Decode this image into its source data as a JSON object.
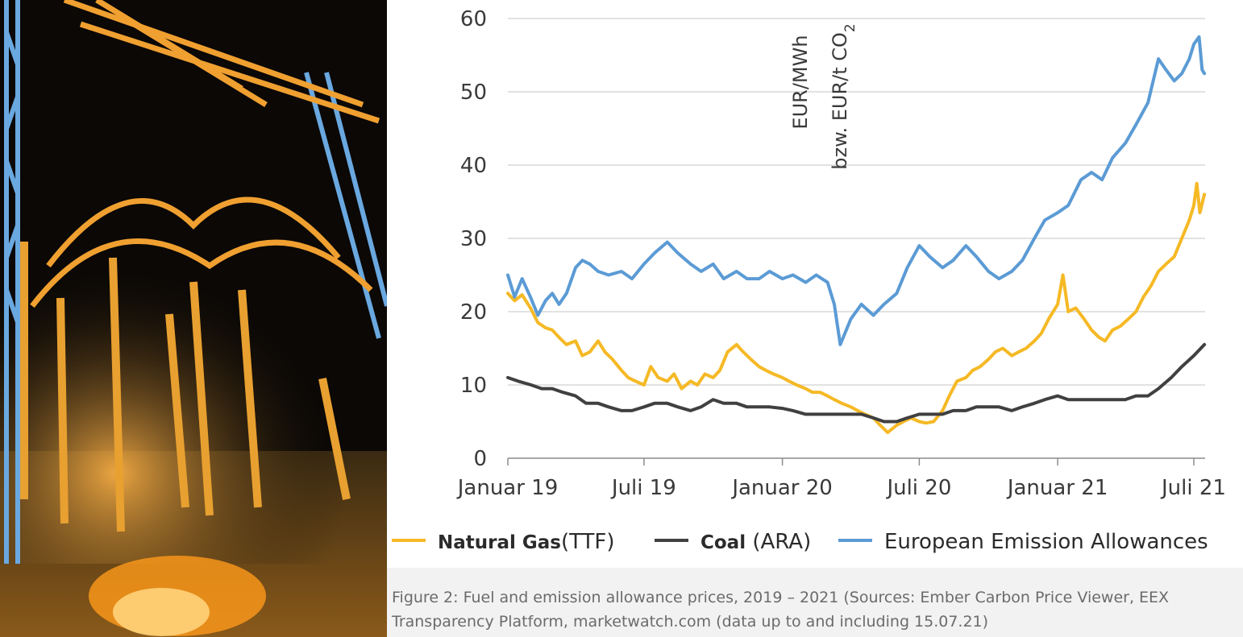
{
  "photo": {
    "icon": "substation-night-photo"
  },
  "chart_data": {
    "type": "line",
    "ylabel_line1": "EUR/MWh",
    "ylabel_line2": "bzw. EUR/t CO",
    "ylabel_sub": "2",
    "ylim": [
      0,
      60
    ],
    "yticks": [
      0,
      10,
      20,
      30,
      40,
      50,
      60
    ],
    "x_range": [
      "2019-01-01",
      "2021-07-16"
    ],
    "xticks": [
      {
        "date": "2019-01-01",
        "label": "Januar 19"
      },
      {
        "date": "2019-07-01",
        "label": "Juli 19"
      },
      {
        "date": "2020-01-01",
        "label": "Januar 20"
      },
      {
        "date": "2020-07-01",
        "label": "Juli 20"
      },
      {
        "date": "2021-01-01",
        "label": "Januar 21"
      },
      {
        "date": "2021-07-01",
        "label": "Juli 21"
      }
    ],
    "grid": "horizontal",
    "legend_position": "bottom",
    "series": [
      {
        "name": "Natural Gas",
        "name_suffix": "(TTF)",
        "color": "#f5b925",
        "points": [
          [
            "2019-01-01",
            22.5
          ],
          [
            "2019-01-10",
            21.5
          ],
          [
            "2019-01-20",
            22.3
          ],
          [
            "2019-01-31",
            20.5
          ],
          [
            "2019-02-10",
            18.5
          ],
          [
            "2019-02-20",
            17.8
          ],
          [
            "2019-03-01",
            17.5
          ],
          [
            "2019-03-10",
            16.5
          ],
          [
            "2019-03-20",
            15.5
          ],
          [
            "2019-04-01",
            16.0
          ],
          [
            "2019-04-10",
            14.0
          ],
          [
            "2019-04-20",
            14.5
          ],
          [
            "2019-05-01",
            16.0
          ],
          [
            "2019-05-10",
            14.5
          ],
          [
            "2019-05-20",
            13.5
          ],
          [
            "2019-06-01",
            12.0
          ],
          [
            "2019-06-10",
            11.0
          ],
          [
            "2019-06-20",
            10.5
          ],
          [
            "2019-07-01",
            10.0
          ],
          [
            "2019-07-10",
            12.5
          ],
          [
            "2019-07-20",
            11.0
          ],
          [
            "2019-08-01",
            10.5
          ],
          [
            "2019-08-10",
            11.5
          ],
          [
            "2019-08-20",
            9.5
          ],
          [
            "2019-09-01",
            10.5
          ],
          [
            "2019-09-10",
            10.0
          ],
          [
            "2019-09-20",
            11.5
          ],
          [
            "2019-10-01",
            11.0
          ],
          [
            "2019-10-10",
            12.0
          ],
          [
            "2019-10-20",
            14.5
          ],
          [
            "2019-11-01",
            15.5
          ],
          [
            "2019-11-10",
            14.5
          ],
          [
            "2019-11-20",
            13.5
          ],
          [
            "2019-12-01",
            12.5
          ],
          [
            "2019-12-10",
            12.0
          ],
          [
            "2019-12-20",
            11.5
          ],
          [
            "2020-01-01",
            11.0
          ],
          [
            "2020-01-10",
            10.5
          ],
          [
            "2020-01-20",
            10.0
          ],
          [
            "2020-02-01",
            9.5
          ],
          [
            "2020-02-10",
            9.0
          ],
          [
            "2020-02-20",
            9.0
          ],
          [
            "2020-03-01",
            8.5
          ],
          [
            "2020-03-10",
            8.0
          ],
          [
            "2020-03-20",
            7.5
          ],
          [
            "2020-04-01",
            7.0
          ],
          [
            "2020-04-10",
            6.5
          ],
          [
            "2020-04-20",
            6.0
          ],
          [
            "2020-05-01",
            5.5
          ],
          [
            "2020-05-10",
            4.5
          ],
          [
            "2020-05-20",
            3.5
          ],
          [
            "2020-06-01",
            4.5
          ],
          [
            "2020-06-10",
            5.0
          ],
          [
            "2020-06-20",
            5.5
          ],
          [
            "2020-07-01",
            5.0
          ],
          [
            "2020-07-10",
            4.8
          ],
          [
            "2020-07-20",
            5.0
          ],
          [
            "2020-08-01",
            6.5
          ],
          [
            "2020-08-10",
            8.5
          ],
          [
            "2020-08-20",
            10.5
          ],
          [
            "2020-09-01",
            11.0
          ],
          [
            "2020-09-10",
            12.0
          ],
          [
            "2020-09-20",
            12.5
          ],
          [
            "2020-10-01",
            13.5
          ],
          [
            "2020-10-10",
            14.5
          ],
          [
            "2020-10-20",
            15.0
          ],
          [
            "2020-11-01",
            14.0
          ],
          [
            "2020-11-10",
            14.5
          ],
          [
            "2020-11-20",
            15.0
          ],
          [
            "2020-12-01",
            16.0
          ],
          [
            "2020-12-10",
            17.0
          ],
          [
            "2020-12-20",
            19.0
          ],
          [
            "2021-01-01",
            21.0
          ],
          [
            "2021-01-08",
            25.0
          ],
          [
            "2021-01-15",
            20.0
          ],
          [
            "2021-01-25",
            20.5
          ],
          [
            "2021-02-05",
            19.0
          ],
          [
            "2021-02-15",
            17.5
          ],
          [
            "2021-02-25",
            16.5
          ],
          [
            "2021-03-05",
            16.0
          ],
          [
            "2021-03-15",
            17.5
          ],
          [
            "2021-03-25",
            18.0
          ],
          [
            "2021-04-05",
            19.0
          ],
          [
            "2021-04-15",
            20.0
          ],
          [
            "2021-04-25",
            22.0
          ],
          [
            "2021-05-05",
            23.5
          ],
          [
            "2021-05-15",
            25.5
          ],
          [
            "2021-05-25",
            26.5
          ],
          [
            "2021-06-05",
            27.5
          ],
          [
            "2021-06-15",
            30.0
          ],
          [
            "2021-06-25",
            32.5
          ],
          [
            "2021-07-01",
            34.5
          ],
          [
            "2021-07-05",
            37.5
          ],
          [
            "2021-07-09",
            33.5
          ],
          [
            "2021-07-15",
            36.0
          ]
        ]
      },
      {
        "name": "Coal",
        "name_suffix": " (ARA)",
        "color": "#404040",
        "points": [
          [
            "2019-01-01",
            11.0
          ],
          [
            "2019-01-15",
            10.5
          ],
          [
            "2019-02-01",
            10.0
          ],
          [
            "2019-02-15",
            9.5
          ],
          [
            "2019-03-01",
            9.5
          ],
          [
            "2019-03-15",
            9.0
          ],
          [
            "2019-04-01",
            8.5
          ],
          [
            "2019-04-15",
            7.5
          ],
          [
            "2019-05-01",
            7.5
          ],
          [
            "2019-05-15",
            7.0
          ],
          [
            "2019-06-01",
            6.5
          ],
          [
            "2019-06-15",
            6.5
          ],
          [
            "2019-07-01",
            7.0
          ],
          [
            "2019-07-15",
            7.5
          ],
          [
            "2019-08-01",
            7.5
          ],
          [
            "2019-08-15",
            7.0
          ],
          [
            "2019-09-01",
            6.5
          ],
          [
            "2019-09-15",
            7.0
          ],
          [
            "2019-10-01",
            8.0
          ],
          [
            "2019-10-15",
            7.5
          ],
          [
            "2019-11-01",
            7.5
          ],
          [
            "2019-11-15",
            7.0
          ],
          [
            "2019-12-01",
            7.0
          ],
          [
            "2019-12-15",
            7.0
          ],
          [
            "2020-01-01",
            6.8
          ],
          [
            "2020-01-15",
            6.5
          ],
          [
            "2020-02-01",
            6.0
          ],
          [
            "2020-02-15",
            6.0
          ],
          [
            "2020-03-01",
            6.0
          ],
          [
            "2020-03-15",
            6.0
          ],
          [
            "2020-04-01",
            6.0
          ],
          [
            "2020-04-15",
            6.0
          ],
          [
            "2020-05-01",
            5.5
          ],
          [
            "2020-05-15",
            5.0
          ],
          [
            "2020-06-01",
            5.0
          ],
          [
            "2020-06-15",
            5.5
          ],
          [
            "2020-07-01",
            6.0
          ],
          [
            "2020-07-15",
            6.0
          ],
          [
            "2020-08-01",
            6.0
          ],
          [
            "2020-08-15",
            6.5
          ],
          [
            "2020-09-01",
            6.5
          ],
          [
            "2020-09-15",
            7.0
          ],
          [
            "2020-10-01",
            7.0
          ],
          [
            "2020-10-15",
            7.0
          ],
          [
            "2020-11-01",
            6.5
          ],
          [
            "2020-11-15",
            7.0
          ],
          [
            "2020-12-01",
            7.5
          ],
          [
            "2020-12-15",
            8.0
          ],
          [
            "2021-01-01",
            8.5
          ],
          [
            "2021-01-15",
            8.0
          ],
          [
            "2021-02-01",
            8.0
          ],
          [
            "2021-02-15",
            8.0
          ],
          [
            "2021-03-01",
            8.0
          ],
          [
            "2021-03-15",
            8.0
          ],
          [
            "2021-04-01",
            8.0
          ],
          [
            "2021-04-15",
            8.5
          ],
          [
            "2021-05-01",
            8.5
          ],
          [
            "2021-05-15",
            9.5
          ],
          [
            "2021-06-01",
            11.0
          ],
          [
            "2021-06-15",
            12.5
          ],
          [
            "2021-07-01",
            14.0
          ],
          [
            "2021-07-15",
            15.5
          ]
        ]
      },
      {
        "name": "European Emission Allowances",
        "name_suffix": "",
        "color": "#5b9bd5",
        "points": [
          [
            "2019-01-01",
            25.0
          ],
          [
            "2019-01-10",
            22.0
          ],
          [
            "2019-01-20",
            24.5
          ],
          [
            "2019-01-31",
            22.0
          ],
          [
            "2019-02-10",
            19.5
          ],
          [
            "2019-02-20",
            21.5
          ],
          [
            "2019-03-01",
            22.5
          ],
          [
            "2019-03-10",
            21.0
          ],
          [
            "2019-03-20",
            22.5
          ],
          [
            "2019-04-01",
            26.0
          ],
          [
            "2019-04-10",
            27.0
          ],
          [
            "2019-04-20",
            26.5
          ],
          [
            "2019-05-01",
            25.5
          ],
          [
            "2019-05-15",
            25.0
          ],
          [
            "2019-06-01",
            25.5
          ],
          [
            "2019-06-15",
            24.5
          ],
          [
            "2019-07-01",
            26.5
          ],
          [
            "2019-07-15",
            28.0
          ],
          [
            "2019-08-01",
            29.5
          ],
          [
            "2019-08-15",
            28.0
          ],
          [
            "2019-09-01",
            26.5
          ],
          [
            "2019-09-15",
            25.5
          ],
          [
            "2019-10-01",
            26.5
          ],
          [
            "2019-10-15",
            24.5
          ],
          [
            "2019-11-01",
            25.5
          ],
          [
            "2019-11-15",
            24.5
          ],
          [
            "2019-12-01",
            24.5
          ],
          [
            "2019-12-15",
            25.5
          ],
          [
            "2020-01-01",
            24.5
          ],
          [
            "2020-01-15",
            25.0
          ],
          [
            "2020-02-01",
            24.0
          ],
          [
            "2020-02-15",
            25.0
          ],
          [
            "2020-03-01",
            24.0
          ],
          [
            "2020-03-10",
            21.0
          ],
          [
            "2020-03-18",
            15.5
          ],
          [
            "2020-04-01",
            19.0
          ],
          [
            "2020-04-15",
            21.0
          ],
          [
            "2020-05-01",
            19.5
          ],
          [
            "2020-05-15",
            21.0
          ],
          [
            "2020-06-01",
            22.5
          ],
          [
            "2020-06-15",
            26.0
          ],
          [
            "2020-07-01",
            29.0
          ],
          [
            "2020-07-15",
            27.5
          ],
          [
            "2020-08-01",
            26.0
          ],
          [
            "2020-08-15",
            27.0
          ],
          [
            "2020-09-01",
            29.0
          ],
          [
            "2020-09-15",
            27.5
          ],
          [
            "2020-10-01",
            25.5
          ],
          [
            "2020-10-15",
            24.5
          ],
          [
            "2020-11-01",
            25.5
          ],
          [
            "2020-11-15",
            27.0
          ],
          [
            "2020-12-01",
            30.0
          ],
          [
            "2020-12-15",
            32.5
          ],
          [
            "2021-01-01",
            33.5
          ],
          [
            "2021-01-15",
            34.5
          ],
          [
            "2021-02-01",
            38.0
          ],
          [
            "2021-02-15",
            39.0
          ],
          [
            "2021-03-01",
            38.0
          ],
          [
            "2021-03-15",
            41.0
          ],
          [
            "2021-04-01",
            43.0
          ],
          [
            "2021-04-15",
            45.5
          ],
          [
            "2021-05-01",
            48.5
          ],
          [
            "2021-05-15",
            54.5
          ],
          [
            "2021-05-25",
            53.0
          ],
          [
            "2021-06-05",
            51.5
          ],
          [
            "2021-06-15",
            52.5
          ],
          [
            "2021-06-25",
            54.5
          ],
          [
            "2021-07-01",
            56.5
          ],
          [
            "2021-07-08",
            57.5
          ],
          [
            "2021-07-12",
            53.0
          ],
          [
            "2021-07-15",
            52.5
          ]
        ]
      }
    ]
  },
  "caption": {
    "line1": "Figure 2: Fuel and emission allowance prices, 2019 – 2021 (Sources: Ember Carbon Price Viewer, EEX",
    "line2": "Transparency Platform, marketwatch.com (data up to and including 15.07.21)"
  }
}
